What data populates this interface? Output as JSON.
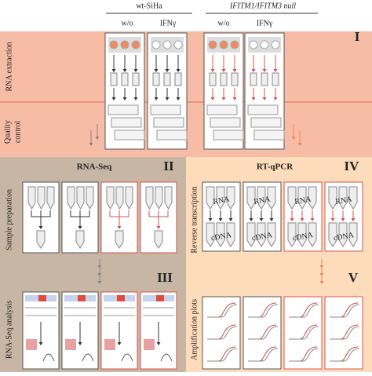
{
  "header": {
    "group_wt": "wt-SiHa",
    "group_null": "IFITM1/IFITM3 null",
    "conditions": [
      "w/o",
      "IFNγ",
      "w/o",
      "IFNγ"
    ]
  },
  "panel_I": {
    "numeral": "I",
    "label_extraction": "RNA extraction",
    "label_qc": [
      "Quality",
      "control"
    ]
  },
  "panel_II": {
    "title": "RNA-Seq",
    "numeral": "II",
    "label": "Sample preparation"
  },
  "panel_III": {
    "numeral": "III",
    "label": "RNA-Seq analysis"
  },
  "panel_IV": {
    "title": "RT-qPCR",
    "numeral": "IV",
    "label": "Reverse transcription",
    "tube_top": "RNA",
    "tube_bottom": "cDNA"
  },
  "panel_V": {
    "numeral": "V",
    "label": "Amplification plots"
  }
}
